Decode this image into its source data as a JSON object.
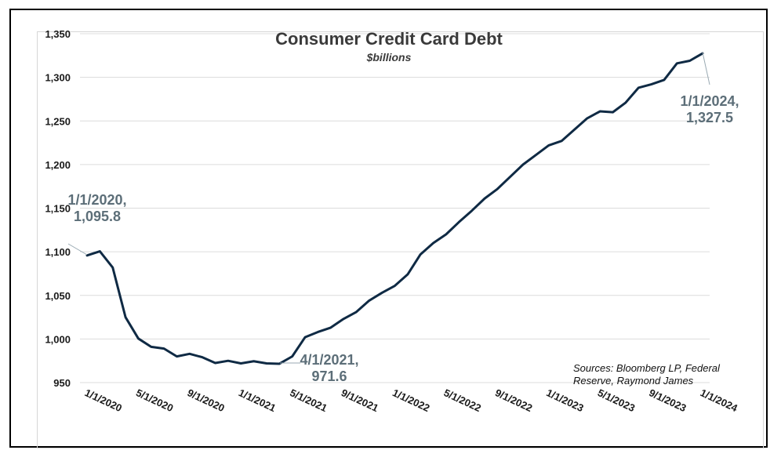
{
  "chart_data": {
    "type": "line",
    "title": "Consumer Credit Card Debt",
    "subtitle": "$billions",
    "xlabel": "",
    "ylabel": "",
    "ylim": [
      950,
      1350
    ],
    "yticks": [
      "1,350",
      "1,300",
      "1,250",
      "1,200",
      "1,150",
      "1,100",
      "1,050",
      "1,000",
      "950"
    ],
    "xticks": [
      "1/1/2020",
      "5/1/2020",
      "9/1/2020",
      "1/1/2021",
      "5/1/2021",
      "9/1/2021",
      "1/1/2022",
      "5/1/2022",
      "9/1/2022",
      "1/1/2023",
      "5/1/2023",
      "9/1/2023",
      "1/1/2024"
    ],
    "grid": true,
    "series": [
      {
        "color": "#0f2a44",
        "values": [
          1095.8,
          1100.5,
          1082,
          1025,
          1000.5,
          991,
          989,
          980,
          983,
          979,
          972.5,
          975,
          972,
          974.5,
          972,
          971.6,
          980,
          1002,
          1008,
          1013,
          1023,
          1031,
          1044,
          1053,
          1061,
          1074,
          1097,
          1110,
          1120,
          1134,
          1147,
          1161,
          1172,
          1186,
          1200,
          1211,
          1222,
          1227,
          1240,
          1253,
          1261,
          1260,
          1271,
          1288,
          1292,
          1297,
          1316,
          1319,
          1327.5
        ]
      }
    ],
    "annotations": [
      {
        "line1": "1/1/2020,",
        "line2": "1,095.8",
        "index": 0
      },
      {
        "line1": "4/1/2021,",
        "line2": "971.6",
        "index": 15
      },
      {
        "line1": "1/1/2024,",
        "line2": "1,327.5",
        "index": 48
      }
    ],
    "source": [
      "Sources: Bloomberg LP, Federal",
      "Reserve, Raymond James"
    ]
  }
}
